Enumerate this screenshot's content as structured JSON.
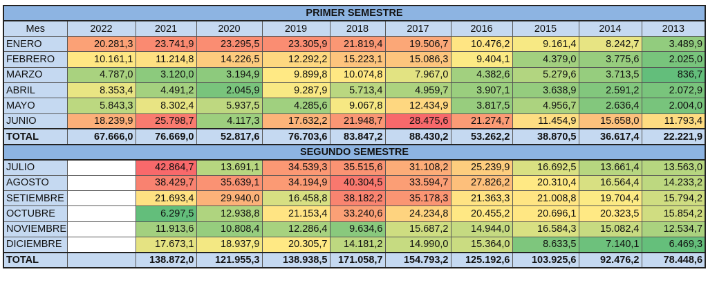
{
  "scale_colors": {
    "low": "#63be7b",
    "mid": "#ffeb84",
    "high": "#f8696b"
  },
  "primer": {
    "title": "PRIMER SEMESTRE",
    "mid_value": 9600,
    "columns": [
      "Mes",
      "2022",
      "2021",
      "2020",
      "2019",
      "2018",
      "2017",
      "2016",
      "2015",
      "2014",
      "2013"
    ],
    "rows": [
      {
        "mes": "ENERO",
        "values": [
          "20.281,3",
          "23.741,9",
          "23.295,5",
          "23.305,9",
          "21.819,4",
          "19.506,7",
          "10.476,2",
          "9.161,4",
          "8.242,7",
          "3.489,9"
        ]
      },
      {
        "mes": "FEBRERO",
        "values": [
          "10.161,1",
          "11.214,8",
          "14.226,5",
          "12.292,2",
          "15.223,1",
          "15.086,3",
          "9.404,1",
          "4.379,0",
          "3.775,6",
          "2.025,0"
        ]
      },
      {
        "mes": "MARZO",
        "values": [
          "4.787,0",
          "3.120,0",
          "3.194,9",
          "9.899,8",
          "10.074,8",
          "7.967,0",
          "4.382,6",
          "5.279,6",
          "3.713,5",
          "836,7"
        ]
      },
      {
        "mes": "ABRIL",
        "values": [
          "8.353,4",
          "4.491,2",
          "2.045,9",
          "9.287,9",
          "5.713,4",
          "4.959,7",
          "3.907,1",
          "3.638,9",
          "2.591,2",
          "2.072,9"
        ]
      },
      {
        "mes": "MAYO",
        "values": [
          "5.843,3",
          "8.302,4",
          "5.937,5",
          "4.285,6",
          "9.067,8",
          "12.434,9",
          "3.817,5",
          "4.956,7",
          "2.636,4",
          "2.004,0"
        ]
      },
      {
        "mes": "JUNIO",
        "values": [
          "18.239,9",
          "25.798,7",
          "4.117,3",
          "17.632,2",
          "21.948,7",
          "28.475,6",
          "21.274,7",
          "11.454,9",
          "15.658,0",
          "11.793,4"
        ]
      }
    ],
    "total": {
      "label": "TOTAL",
      "values": [
        "67.666,0",
        "76.669,0",
        "52.817,6",
        "76.703,6",
        "83.847,2",
        "88.430,2",
        "53.262,2",
        "38.870,5",
        "36.617,4",
        "22.221,9"
      ]
    }
  },
  "segundo": {
    "title": "SEGUNDO SEMESTRE",
    "mid_value": 20000,
    "rows": [
      {
        "mes": "JULIO",
        "values": [
          "",
          "42.864,7",
          "13.691,1",
          "34.539,3",
          "35.515,6",
          "31.108,2",
          "25.239,9",
          "16.692,5",
          "13.661,4",
          "13.563,0"
        ]
      },
      {
        "mes": "AGOSTO",
        "values": [
          "",
          "38.429,7",
          "35.639,1",
          "34.194,9",
          "40.304,5",
          "33.594,7",
          "27.826,2",
          "20.310,4",
          "16.564,4",
          "14.233,2"
        ]
      },
      {
        "mes": "SETIEMBRE",
        "values": [
          "",
          "21.693,4",
          "29.940,0",
          "16.458,8",
          "38.182,2",
          "35.178,3",
          "21.363,3",
          "21.008,8",
          "19.704,4",
          "15.794,2"
        ]
      },
      {
        "mes": "OCTUBRE",
        "values": [
          "",
          "6.297,5",
          "12.938,8",
          "21.153,4",
          "33.240,6",
          "24.234,8",
          "20.455,2",
          "20.696,1",
          "20.323,5",
          "15.854,2"
        ]
      },
      {
        "mes": "NOVIEMBRE",
        "values": [
          "",
          "11.913,6",
          "10.808,4",
          "12.286,4",
          "9.634,6",
          "15.687,2",
          "14.944,0",
          "16.584,3",
          "15.082,4",
          "12.534,7"
        ]
      },
      {
        "mes": "DICIEMBRE",
        "values": [
          "",
          "17.673,1",
          "18.937,9",
          "20.305,7",
          "14.181,2",
          "14.990,0",
          "15.364,0",
          "8.633,5",
          "7.140,1",
          "6.469,3"
        ]
      }
    ],
    "total": {
      "label": "TOTAL",
      "values": [
        "",
        "138.872,0",
        "121.955,3",
        "138.938,5",
        "171.058,7",
        "154.793,2",
        "125.192,6",
        "103.925,6",
        "92.476,2",
        "78.448,6"
      ]
    }
  }
}
